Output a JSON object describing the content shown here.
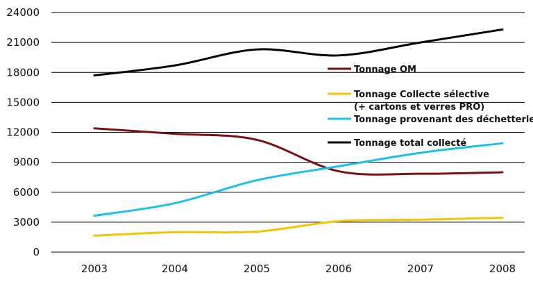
{
  "chart_data": {
    "type": "line",
    "title": "",
    "xlabel": "",
    "ylabel": "",
    "x": [
      2003,
      2004,
      2005,
      2006,
      2007,
      2008
    ],
    "ylim": [
      0,
      24000
    ],
    "yticks": [
      0,
      3000,
      6000,
      9000,
      12000,
      15000,
      18000,
      21000,
      24000
    ],
    "xtick_labels": [
      "2003",
      "2004",
      "2005",
      "2006",
      "2007",
      "2008"
    ],
    "grid": "horizontal",
    "legend_placement": "center-right",
    "series": [
      {
        "name": "Tonnage OM",
        "name_line2": "",
        "color": "#7a1010",
        "values": [
          12400,
          11850,
          11250,
          8100,
          7850,
          8000
        ]
      },
      {
        "name": "Tonnage Collecte sélective",
        "name_line2": "(+ cartons et verres PRO)",
        "color": "#f5c400",
        "values": [
          1650,
          2000,
          2050,
          3100,
          3250,
          3450
        ]
      },
      {
        "name": "Tonnage provenant des déchetteries",
        "name_line2": "",
        "color": "#1ec0ea",
        "values": [
          3650,
          4900,
          7200,
          8600,
          9950,
          10900
        ]
      },
      {
        "name": "Tonnage total collecté",
        "name_line2": "",
        "color": "#000000",
        "values": [
          17700,
          18700,
          20300,
          19700,
          21000,
          22300
        ]
      }
    ]
  }
}
